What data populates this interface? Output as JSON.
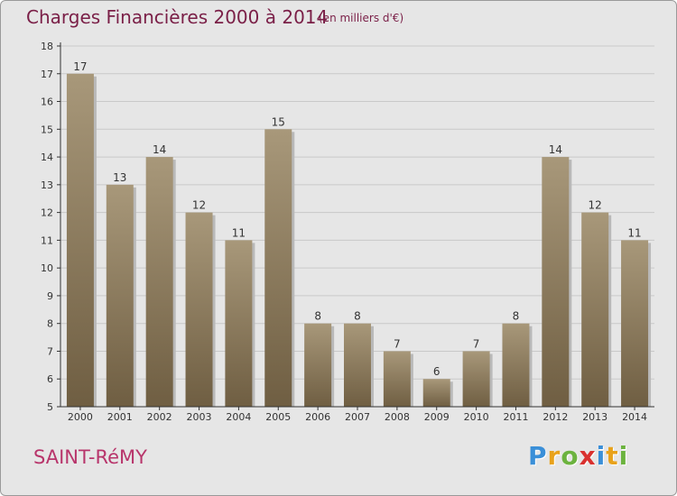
{
  "header": {
    "title": "Charges Financières 2000 à 2014",
    "subtitle": "(en milliers d'€)"
  },
  "footer": {
    "town": "SAINT-RéMY",
    "brand": [
      "P",
      "r",
      "o",
      "x",
      "i",
      "t",
      "i"
    ],
    "brand_colors": [
      "#3a8fd8",
      "#e8a21b",
      "#6cb33f",
      "#d9312f",
      "#3a8fd8",
      "#e8a21b",
      "#6cb33f"
    ]
  },
  "colors": {
    "bar_top": "#a8987a",
    "bar_bottom": "#6f5e42",
    "bar_shadow": "#b9b9b9",
    "grid": "#c9c9c9",
    "axis": "#333333",
    "title": "#7a1f47",
    "town": "#b8356b"
  },
  "chart_data": {
    "type": "bar",
    "categories": [
      "2000",
      "2001",
      "2002",
      "2003",
      "2004",
      "2005",
      "2006",
      "2007",
      "2008",
      "2009",
      "2010",
      "2011",
      "2012",
      "2013",
      "2014"
    ],
    "values": [
      17,
      13,
      14,
      12,
      11,
      15,
      8,
      8,
      7,
      6,
      7,
      8,
      14,
      12,
      11
    ],
    "ylim": [
      5,
      18
    ],
    "yticks": [
      5,
      6,
      7,
      8,
      9,
      10,
      11,
      12,
      13,
      14,
      15,
      16,
      17,
      18
    ],
    "grid": true,
    "data_labels": true
  }
}
